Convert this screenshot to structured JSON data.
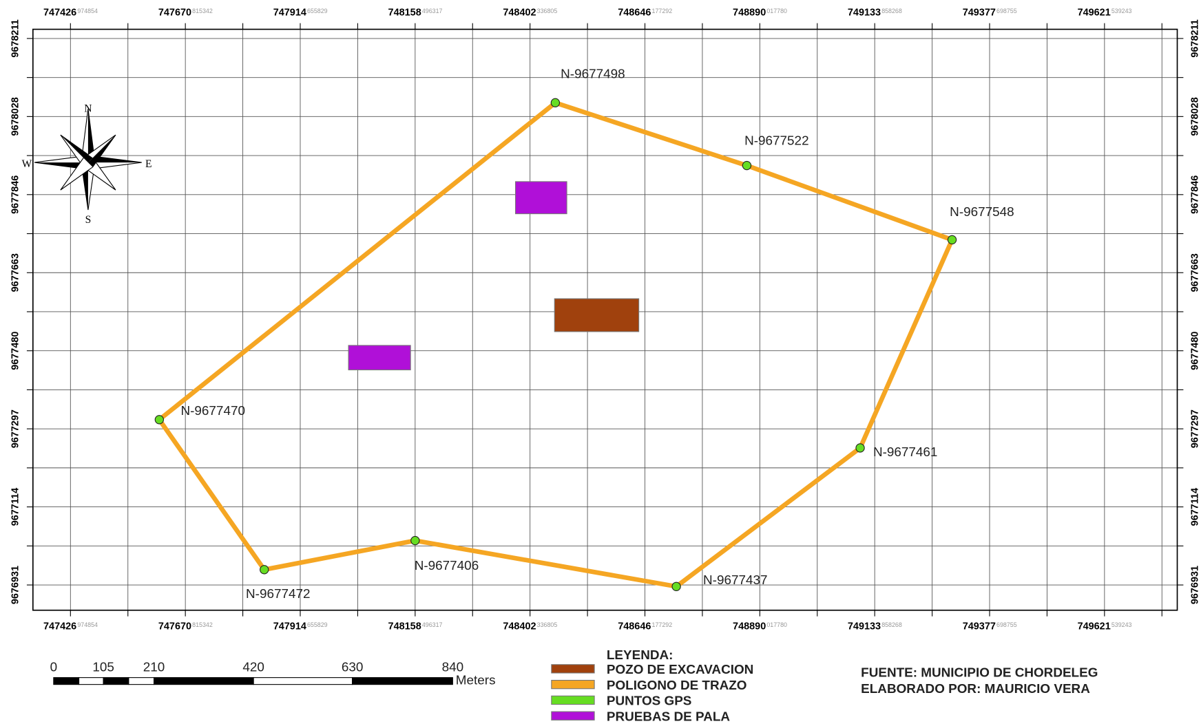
{
  "map": {
    "x_labels": [
      {
        "value": "747426",
        "decimal": "974854"
      },
      {
        "value": "747670",
        "decimal": "815342"
      },
      {
        "value": "747914",
        "decimal": "655829"
      },
      {
        "value": "748158",
        "decimal": "496317"
      },
      {
        "value": "748402",
        "decimal": "336805"
      },
      {
        "value": "748646",
        "decimal": "177292"
      },
      {
        "value": "748890",
        "decimal": "017780"
      },
      {
        "value": "749133",
        "decimal": "858268"
      },
      {
        "value": "749377",
        "decimal": "698755"
      },
      {
        "value": "749621",
        "decimal": "539243"
      }
    ],
    "y_labels": [
      "9678211",
      "9678028",
      "9677846",
      "9677663",
      "9677480",
      "9677297",
      "9677114",
      "9676931"
    ],
    "compass": [
      "N",
      "S",
      "W",
      "E"
    ],
    "points": [
      "N-9677498",
      "N-9677522",
      "N-9677548",
      "N-9677461",
      "N-9677437",
      "N-9677406",
      "N-9677472",
      "N-9677470"
    ],
    "scale_bar": {
      "labels": [
        "0",
        "105",
        "210",
        "420",
        "630",
        "840"
      ],
      "unit": "Meters"
    },
    "legend": {
      "title": "LEYENDA:",
      "items": [
        {
          "label": "POZO DE EXCAVACION",
          "color": "#a0410d"
        },
        {
          "label": "POLIGONO DE TRAZO",
          "color": "#f5a623"
        },
        {
          "label": "PUNTOS GPS",
          "color": "#66dd22"
        },
        {
          "label": "PRUEBAS DE PALA",
          "color": "#b010d8"
        }
      ]
    },
    "credits": [
      "FUENTE: MUNICIPIO DE CHORDELEG",
      "ELABORADO POR: MAURICIO VERA"
    ]
  }
}
